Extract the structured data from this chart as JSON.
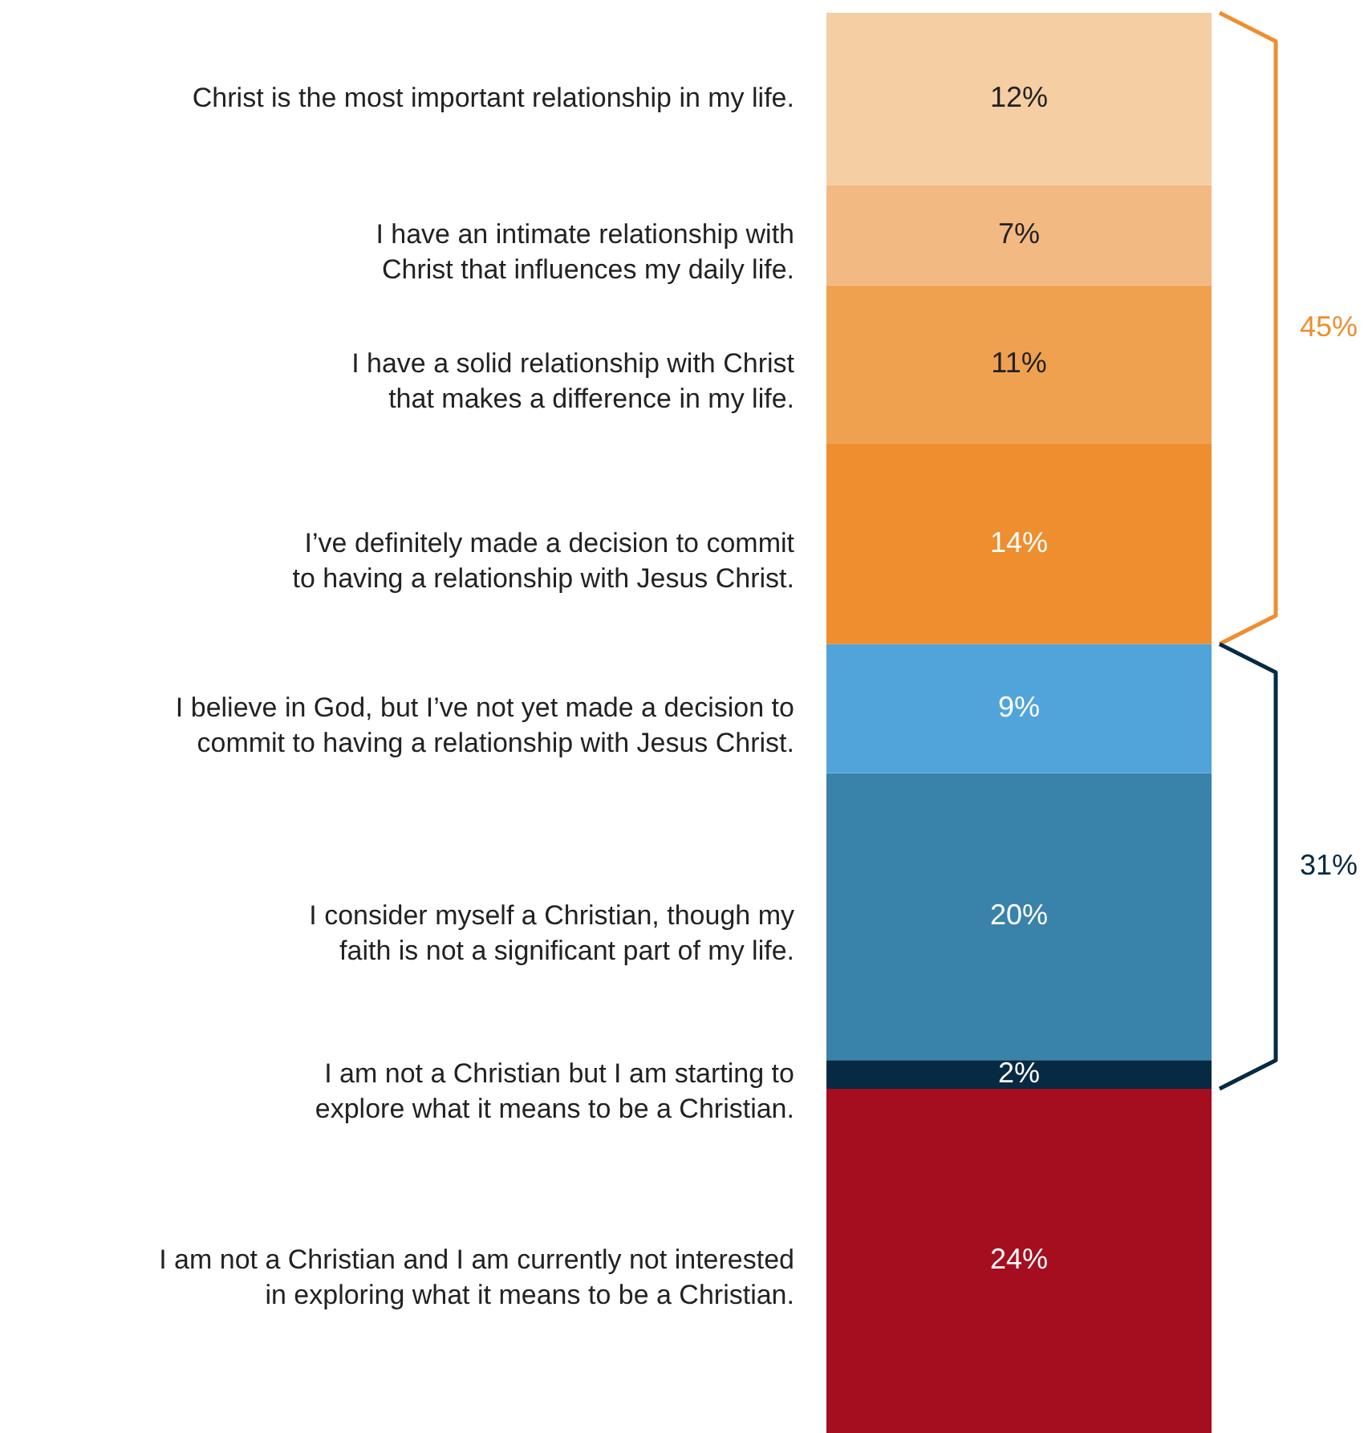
{
  "chart_data": {
    "type": "bar",
    "stacked": true,
    "categories": [
      null
    ],
    "data_labels": false,
    "series": [
      {
        "name": "I am not a Christian and I am currently not interested\nin exploring what it means to be a Christian.",
        "color": "#a50e1e",
        "values": [
          24
        ],
        "value_labels": [
          "24%"
        ]
      },
      {
        "name": "I am not a Christian but I am starting to\nexplore what it means to be a Christian.",
        "color": "#062a44",
        "values": [
          2
        ],
        "value_labels": [
          "2%"
        ]
      },
      {
        "name": "I consider myself a Christian, though my\nfaith is not a significant part of my life.",
        "color": "#3982a9",
        "values": [
          20
        ],
        "value_labels": [
          "20%"
        ]
      },
      {
        "name": "I believe in God, but I’ve not yet made a decision to\ncommit to having a relationship with Jesus Christ.",
        "color": "#51a4da",
        "values": [
          9
        ],
        "value_labels": [
          "9%"
        ]
      },
      {
        "name": "I’ve definitely made a decision to commit\nto having a relationship with Jesus Christ.",
        "color": "#ee8e2e",
        "values": [
          14
        ],
        "value_labels": [
          "14%"
        ]
      },
      {
        "name": "I have a solid relationship with Christ\nthat makes a difference in my life.",
        "color": "#f0a150",
        "values": [
          11
        ],
        "value_labels": [
          "11%"
        ]
      },
      {
        "name": "I have an intimate relationship with\nChrist that influences my daily life.",
        "color": "#f3b983",
        "values": [
          7
        ],
        "value_labels": [
          "7%"
        ]
      },
      {
        "name": "Christ is the most important relationship in my life.",
        "color": "#f5cea3",
        "values": [
          12
        ],
        "value_labels": [
          "12%"
        ]
      }
    ],
    "annotations": [
      "45%",
      "31%"
    ]
  }
}
